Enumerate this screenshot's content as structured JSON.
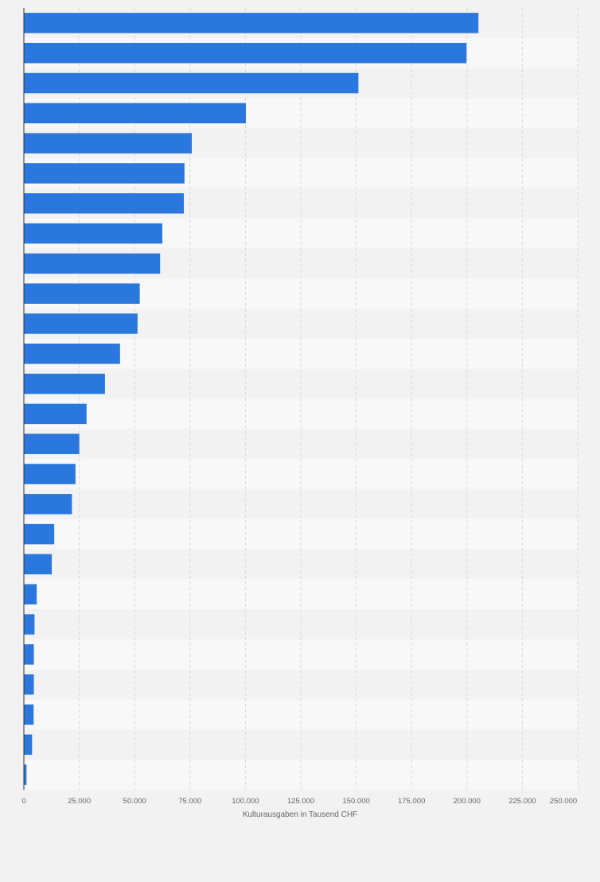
{
  "chart_data": {
    "type": "bar",
    "orientation": "horizontal",
    "title": "",
    "xlabel": "Kulturausgaben in Tausend CHF",
    "ylabel": "",
    "xlim": [
      0,
      250000
    ],
    "x_ticks": [
      0,
      25000,
      50000,
      75000,
      100000,
      125000,
      150000,
      175000,
      200000,
      225000,
      250000
    ],
    "x_tick_labels": [
      "0",
      "25.000",
      "50.000",
      "75.000",
      "100.000",
      "125.000",
      "150.000",
      "175.000",
      "200.000",
      "225.000",
      "250.000"
    ],
    "grid": true,
    "legend": "none",
    "bar_color": "#2a77dd",
    "values": [
      205200,
      199800,
      151000,
      100200,
      75800,
      72500,
      72200,
      62500,
      61500,
      52300,
      51300,
      43400,
      36600,
      28300,
      25000,
      23300,
      21700,
      13700,
      12600,
      5800,
      4800,
      4500,
      4500,
      4400,
      3700,
      1200
    ]
  }
}
